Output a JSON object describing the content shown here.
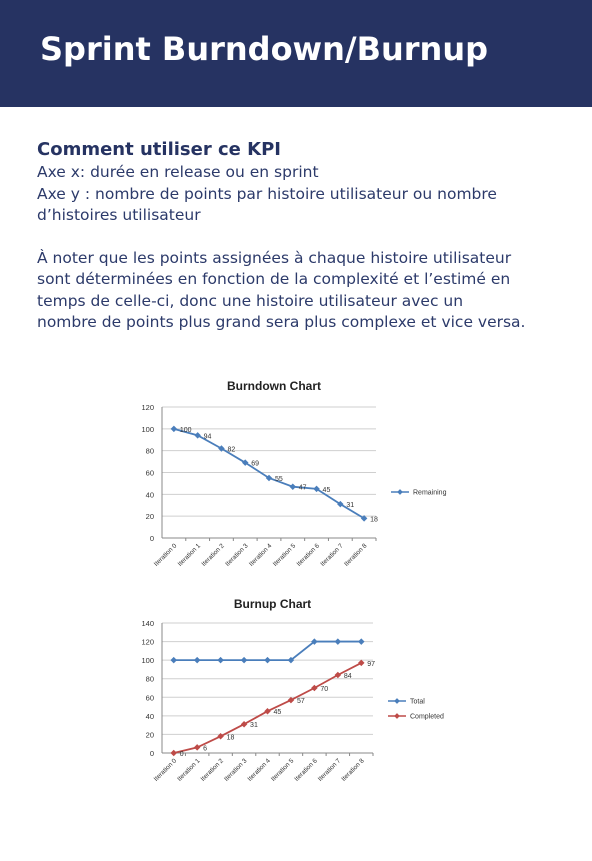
{
  "header": {
    "title": "Sprint Burndown/Burnup"
  },
  "body": {
    "heading": "Comment utiliser ce KPI",
    "axis_lines": [
      "Axe x: durée en release ou en sprint",
      "Axe y : nombre de points par histoire utilisateur ou nombre",
      "d’histoires utilisateur"
    ],
    "note_lines": [
      "À noter que les points assignées à chaque histoire utilisateur",
      "sont déterminées en fonction de la complexité et l’estimé en",
      "temps de celle-ci, donc une histoire utilisateur avec un",
      "nombre de points plus grand sera plus complexe et vice versa."
    ]
  },
  "colors": {
    "header_bg": "#263362",
    "text": "#263362",
    "blue_series": "#4a7ebb",
    "red_series": "#be4b48"
  },
  "chart_data": [
    {
      "type": "line",
      "title": "Burndown Chart",
      "categories": [
        "Iteration 0",
        "Iteration 1",
        "Iteration 2",
        "Iteration 3",
        "Iteration 4",
        "Iteration 5",
        "Iteration 6",
        "Iteration 7",
        "Iteration 8"
      ],
      "series": [
        {
          "name": "Remaining",
          "color": "#4a7ebb",
          "values": [
            100,
            94,
            82,
            69,
            55,
            47,
            45,
            31,
            18
          ]
        }
      ],
      "ylim": [
        0,
        120
      ],
      "yticks": [
        0,
        20,
        40,
        60,
        80,
        100,
        120
      ],
      "grid": true,
      "legend": "right",
      "data_labels": true
    },
    {
      "type": "line",
      "title": "Burnup Chart",
      "categories": [
        "Iteration 0",
        "Iteration 1",
        "Iteration 2",
        "Iteration 3",
        "Iteration 4",
        "Iteration 5",
        "Iteration 6",
        "Iteration 7",
        "Iteration 8"
      ],
      "series": [
        {
          "name": "Total",
          "color": "#4a7ebb",
          "values": [
            100,
            100,
            100,
            100,
            100,
            100,
            120,
            120,
            120
          ],
          "labels": false
        },
        {
          "name": "Completed",
          "color": "#be4b48",
          "values": [
            0,
            6,
            18,
            31,
            45,
            57,
            70,
            84,
            97
          ],
          "labels": true
        }
      ],
      "ylim": [
        0,
        140
      ],
      "yticks": [
        0,
        20,
        40,
        60,
        80,
        100,
        120,
        140
      ],
      "grid": true,
      "legend": "right",
      "data_labels": true
    }
  ]
}
